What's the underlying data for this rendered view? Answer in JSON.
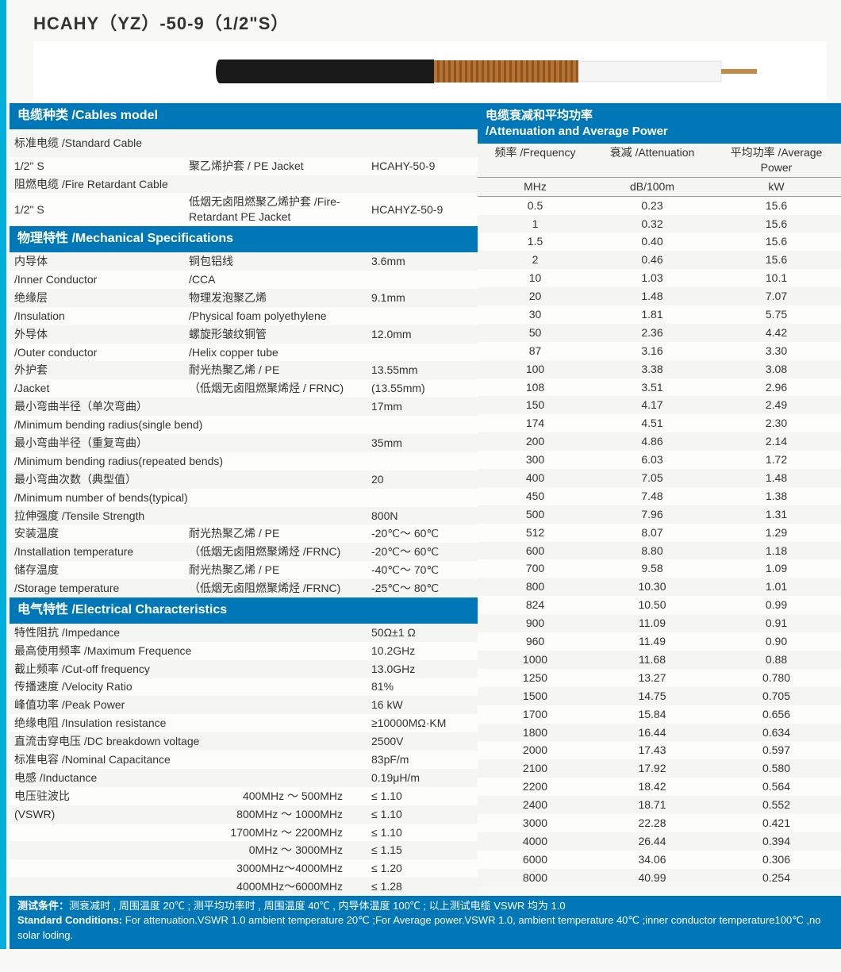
{
  "title": "HCAHY（YZ）-50-9（1/2\"S）",
  "cableImg": {
    "outerJacket": "#1a1a1a",
    "helix": "#b87333",
    "helixDark": "#8b5520",
    "dielectric": "#f5f5f5",
    "innerCond": "#c48a4a",
    "bg": "#ffffff"
  },
  "headers": {
    "cablesModel": "电缆种类 /Cables model",
    "mechSpecs": "物理特性 /Mechanical Specifications",
    "elecChars": "电气特性 /Electrical Characteristics",
    "attenTop": "电缆衰减和平均功率",
    "attenSub": "/Attenuation and Average Power"
  },
  "cables": {
    "stdLabel": "标准电缆 /Standard Cable",
    "fireLabel": "阻燃电缆 /Fire Retardant Cable",
    "rows": [
      {
        "c1": "1/2\" S",
        "c2": "聚乙烯护套 / PE Jacket",
        "c3": "HCAHY-50-9"
      },
      {
        "c1": "1/2\" S",
        "c2": "低烟无卤阻燃聚乙烯护套 /Fire-Retardant PE Jacket",
        "c3": "HCAHYZ-50-9"
      }
    ]
  },
  "mech": [
    {
      "c1a": "内导体",
      "c2a": "铜包铝线",
      "c3": "3.6mm",
      "c1b": "/Inner Conductor",
      "c2b": "/CCA"
    },
    {
      "c1a": "绝缘层",
      "c2a": "物理发泡聚乙烯",
      "c3": "9.1mm",
      "c1b": "/Insulation",
      "c2b": "/Physical foam polyethylene"
    },
    {
      "c1a": "外导体",
      "c2a": "螺旋形皱纹铜管",
      "c3": "12.0mm",
      "c1b": "/Outer conductor",
      "c2b": "/Helix copper tube"
    },
    {
      "c1a": "外护套",
      "c2a": "耐光热聚乙烯 / PE",
      "c3": "13.55mm",
      "c1b": "/Jacket",
      "c2b": "（低烟无卤阻燃聚烯烃 / FRNC)",
      "c3b": "(13.55mm)"
    },
    {
      "c1a": "最小弯曲半径（单次弯曲）",
      "c3": "17mm",
      "c1b": "/Minimum bending radius(single bend)"
    },
    {
      "c1a": "最小弯曲半径（重复弯曲）",
      "c3": "35mm",
      "c1b": "/Minimum bending radius(repeated bends)"
    },
    {
      "c1a": "最小弯曲次数（典型值）",
      "c3": "20",
      "c1b": "/Minimum number of bends(typical)"
    },
    {
      "c1a": "拉伸强度 /Tensile  Strength",
      "c3": "800N"
    },
    {
      "c1a": "安装温度",
      "c2a": "耐光热聚乙烯 / PE",
      "c3": "-20℃～ 60℃",
      "c1b": "/Installation temperature",
      "c2b": "（低烟无卤阻燃聚烯烃 /FRNC)",
      "c3b": "-20℃～ 60℃"
    },
    {
      "c1a": "储存温度",
      "c2a": "耐光热聚乙烯 / PE",
      "c3": "-40℃～ 70℃",
      "c1b": "/Storage temperature",
      "c2b": "（低烟无卤阻燃聚烯烃 /FRNC)",
      "c3b": "-25℃～ 80℃"
    }
  ],
  "elec": [
    {
      "c1": "特性阻抗 /Impedance",
      "c3": "50Ω±1 Ω"
    },
    {
      "c1": "最高使用频率 /Maximum Frequence",
      "c3": "10.2GHz"
    },
    {
      "c1": "截止频率 /Cut-off frequency",
      "c3": "13.0GHz"
    },
    {
      "c1": "传播速度 /Velocity Ratio",
      "c3": "81%"
    },
    {
      "c1": "峰值功率 /Peak Power",
      "c3": "16 kW"
    },
    {
      "c1": "绝缘电阻 /Insulation resistance",
      "c3": "≥10000MΩ·KM"
    },
    {
      "c1": "直流击穿电压 /DC breakdown voltage",
      "c3": "2500V"
    },
    {
      "c1": "标准电容 /Nominal Capacitance",
      "c3": "83pF/m"
    },
    {
      "c1": "电感 /Inductance",
      "c3": "0.19μH/m"
    }
  ],
  "vswr": {
    "label1": "电压驻波比",
    "label2": "(VSWR)",
    "rows": [
      {
        "rng": "400MHz ～ 500MHz",
        "val": "≤ 1.10"
      },
      {
        "rng": "800MHz ～ 1000MHz",
        "val": "≤ 1.10"
      },
      {
        "rng": "1700MHz ～ 2200MHz",
        "val": "≤ 1.10"
      },
      {
        "rng": "0MHz ～ 3000MHz",
        "val": "≤ 1.15"
      },
      {
        "rng": "3000MHz～4000MHz",
        "val": "≤ 1.20"
      },
      {
        "rng": "4000MHz～6000MHz",
        "val": "≤ 1.28"
      }
    ]
  },
  "atten": {
    "hdr1": {
      "c1": "频率 /Frequency",
      "c2": "衰减 /Attenuation",
      "c3": "平均功率 /Average Power"
    },
    "hdr2": {
      "c1": "MHz",
      "c2": "dB/100m",
      "c3": "kW"
    },
    "rows": [
      [
        "0.5",
        "0.23",
        "15.6"
      ],
      [
        "1",
        "0.32",
        "15.6"
      ],
      [
        "1.5",
        "0.40",
        "15.6"
      ],
      [
        "2",
        "0.46",
        "15.6"
      ],
      [
        "10",
        "1.03",
        "10.1"
      ],
      [
        "20",
        "1.48",
        "7.07"
      ],
      [
        "30",
        "1.81",
        "5.75"
      ],
      [
        "50",
        "2.36",
        "4.42"
      ],
      [
        "87",
        "3.16",
        "3.30"
      ],
      [
        "100",
        "3.38",
        "3.08"
      ],
      [
        "108",
        "3.51",
        "2.96"
      ],
      [
        "150",
        "4.17",
        "2.49"
      ],
      [
        "174",
        "4.51",
        "2.30"
      ],
      [
        "200",
        "4.86",
        "2.14"
      ],
      [
        "300",
        "6.03",
        "1.72"
      ],
      [
        "400",
        "7.05",
        "1.48"
      ],
      [
        "450",
        "7.48",
        "1.38"
      ],
      [
        "500",
        "7.96",
        "1.31"
      ],
      [
        "512",
        "8.07",
        "1.29"
      ],
      [
        "600",
        "8.80",
        "1.18"
      ],
      [
        "700",
        "9.58",
        "1.09"
      ],
      [
        "800",
        "10.30",
        "1.01"
      ],
      [
        "824",
        "10.50",
        "0.99"
      ],
      [
        "900",
        "11.09",
        "0.91"
      ],
      [
        "960",
        "11.49",
        "0.90"
      ],
      [
        "1000",
        "11.68",
        "0.88"
      ],
      [
        "1250",
        "13.27",
        "0.780"
      ],
      [
        "1500",
        "14.75",
        "0.705"
      ],
      [
        "1700",
        "15.84",
        "0.656"
      ],
      [
        "1800",
        "16.44",
        "0.634"
      ],
      [
        "2000",
        "17.43",
        "0.597"
      ],
      [
        "2100",
        "17.92",
        "0.580"
      ],
      [
        "2200",
        "18.42",
        "0.564"
      ],
      [
        "2400",
        "18.71",
        "0.552"
      ],
      [
        "3000",
        "22.28",
        "0.421"
      ],
      [
        "4000",
        "26.44",
        "0.394"
      ],
      [
        "6000",
        "34.06",
        "0.306"
      ],
      [
        "8000",
        "40.99",
        "0.254"
      ]
    ]
  },
  "footer": {
    "line1a": "测试条件：",
    "line1b": "测衰减时 , 周围温度 20℃ ; 测平均功率时 , 周围温度 40℃ , 内导体温度 100℃ ; 以上测试电缆 VSWR 均为 1.0",
    "line2a": "Standard Conditions: ",
    "line2b": "For attenuation.VSWR 1.0 ambient temperature 20℃ ;For Average power.VSWR 1.0, ambient temperature 40℃ ;inner conductor temperature100℃ ,no solar loding."
  }
}
